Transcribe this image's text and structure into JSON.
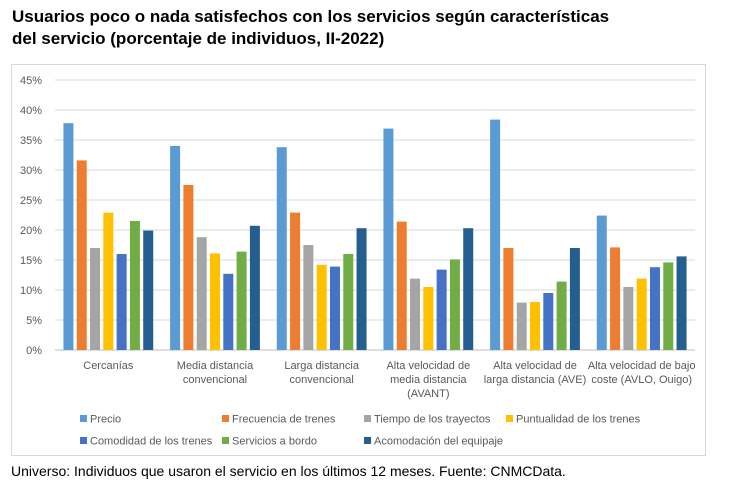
{
  "title": {
    "line1": "Usuarios poco o nada satisfechos con los servicios según características",
    "line2": "del servicio (porcentaje de individuos, II-2022)"
  },
  "footer": "Universo: Individuos que usaron el servicio en los últimos 12 meses. Fuente: CNMCData.",
  "chart_data": {
    "type": "bar",
    "title": "Usuarios poco o nada satisfechos con los servicios según características del servicio (porcentaje de individuos, II-2022)",
    "ylim": [
      0,
      45
    ],
    "ytick_step": 5,
    "ytick_labels": [
      "0%",
      "5%",
      "10%",
      "15%",
      "20%",
      "25%",
      "30%",
      "35%",
      "40%",
      "45%"
    ],
    "grid": true,
    "legend_position": "bottom",
    "categories": [
      [
        "Cercanías"
      ],
      [
        "Media distancia",
        "convencional"
      ],
      [
        "Larga distancia",
        "convencional"
      ],
      [
        "Alta velocidad de",
        "media distancia",
        "(AVANT)"
      ],
      [
        "Alta velocidad de",
        "larga distancia (AVE)"
      ],
      [
        "Alta velocidad de bajo",
        "coste (AVLO, Ouigo)"
      ]
    ],
    "series": [
      {
        "name": "Precio",
        "color": "#5b9bd5",
        "values": [
          37.8,
          34.0,
          33.8,
          36.9,
          38.4,
          22.4
        ]
      },
      {
        "name": "Frecuencia de trenes",
        "color": "#ed7d31",
        "values": [
          31.6,
          27.5,
          22.9,
          21.4,
          17.0,
          17.1
        ]
      },
      {
        "name": "Tiempo de los trayectos",
        "color": "#a5a5a5",
        "values": [
          17.0,
          18.8,
          17.5,
          11.9,
          7.9,
          10.5
        ]
      },
      {
        "name": "Puntualidad de los trenes",
        "color": "#ffc000",
        "values": [
          22.9,
          16.1,
          14.2,
          10.5,
          8.0,
          11.9
        ]
      },
      {
        "name": "Comodidad de los trenes",
        "color": "#4472c4",
        "values": [
          16.0,
          12.7,
          13.9,
          13.4,
          9.5,
          13.8
        ]
      },
      {
        "name": "Servicios a bordo",
        "color": "#70ad47",
        "values": [
          21.5,
          16.4,
          16.0,
          15.1,
          11.4,
          14.6
        ]
      },
      {
        "name": "Acomodación del equipaje",
        "color": "#255e91",
        "values": [
          19.9,
          20.7,
          20.3,
          20.3,
          17.0,
          15.6
        ]
      }
    ]
  }
}
